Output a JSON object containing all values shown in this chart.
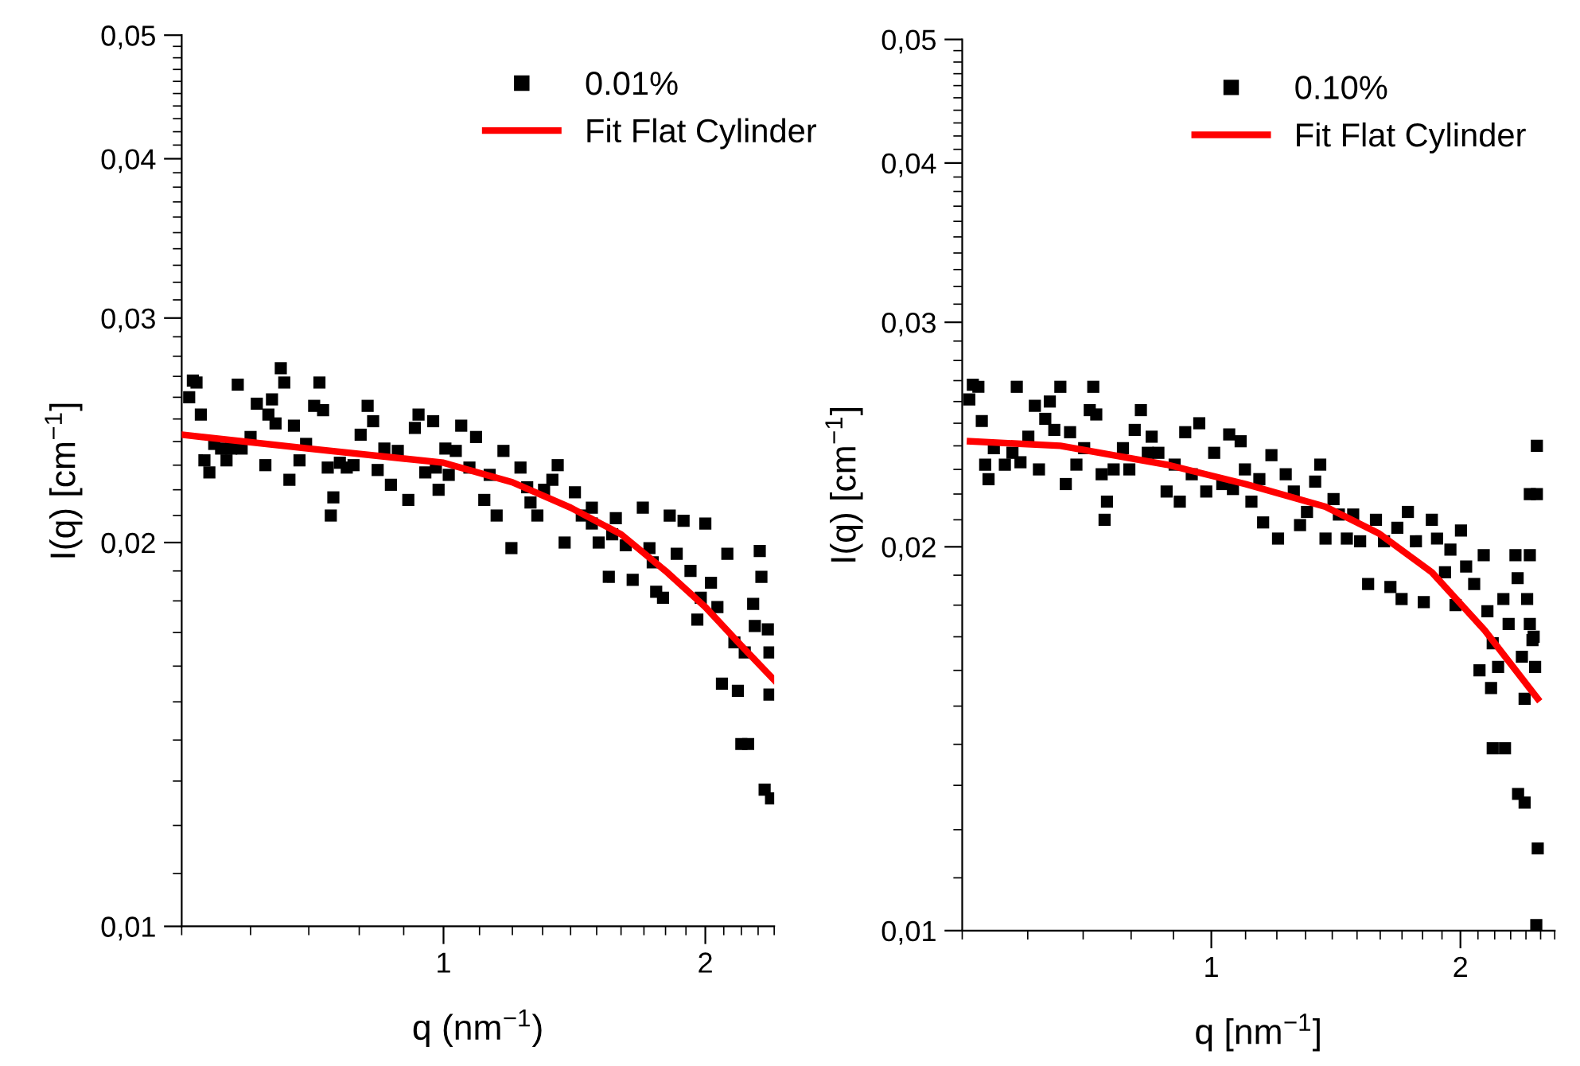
{
  "chart_data": [
    {
      "type": "scatter",
      "xlabel": "q (nm$^{−1}$)",
      "ylabel": "I(q) [cm$^{−1}$]",
      "log": "xy",
      "legend": "top right",
      "xlim": [
        0.5,
        2.4
      ],
      "ylim": [
        0.01,
        0.05
      ],
      "xticks": [
        1,
        2
      ],
      "yticks": [
        {
          "value": 0.01,
          "label": "0,01"
        },
        {
          "value": 0.02,
          "label": "0,02"
        },
        {
          "value": 0.03,
          "label": "0,03"
        },
        {
          "value": 0.04,
          "label": "0,04"
        },
        {
          "value": 0.05,
          "label": "0,05"
        }
      ],
      "series": [
        {
          "name": "0.01%",
          "color": "#000000",
          "marker": "square",
          "x": [
            0.51,
            0.515,
            0.52,
            0.526,
            0.531,
            0.538,
            0.545,
            0.555,
            0.563,
            0.57,
            0.58,
            0.586,
            0.6,
            0.61,
            0.624,
            0.629,
            0.635,
            0.641,
            0.65,
            0.656,
            0.665,
            0.673,
            0.683,
            0.695,
            0.71,
            0.72,
            0.727,
            0.736,
            0.742,
            0.747,
            0.76,
            0.774,
            0.788,
            0.803,
            0.818,
            0.83,
            0.84,
            0.855,
            0.87,
            0.886,
            0.911,
            0.927,
            0.936,
            0.953,
            0.973,
            0.987,
            1.005,
            1.033,
            1.048,
            1.071,
            1.09,
            1.114,
            1.151,
            1.172,
            1.197,
            1.226,
            1.248,
            1.282,
            1.305,
            1.334,
            1.353,
            1.378,
            1.416,
            1.442,
            1.481,
            1.508,
            1.549,
            1.578,
            1.62,
            1.65,
            1.695,
            1.725,
            1.756,
            1.788,
            1.82,
            1.854,
            1.888,
            1.923,
            1.958,
            2.0,
            2.03,
            2.09,
            2.12,
            2.16,
            2.18,
            2.2,
            2.24,
            2.27,
            2.31,
            2.32,
            2.34,
            2.36,
            2.37,
            2.38,
            2.37,
            1.976,
            2.065,
            1.74,
            1.563,
            1.481,
            1.259,
            1.13,
            1.014,
            0.98,
            2.28,
            2.22
          ],
          "values": [
            0.026,
            0.0268,
            0.0267,
            0.0252,
            0.0232,
            0.0227,
            0.0239,
            0.0237,
            0.0232,
            0.0237,
            0.0266,
            0.0237,
            0.0242,
            0.0257,
            0.023,
            0.0252,
            0.0259,
            0.0248,
            0.0274,
            0.0267,
            0.0224,
            0.0247,
            0.0232,
            0.0239,
            0.0256,
            0.0267,
            0.0254,
            0.0229,
            0.021,
            0.0217,
            0.0231,
            0.0229,
            0.023,
            0.0243,
            0.0256,
            0.0249,
            0.0228,
            0.0237,
            0.0222,
            0.0236,
            0.0216,
            0.0246,
            0.0252,
            0.0227,
            0.0249,
            0.022,
            0.0237,
            0.0236,
            0.0247,
            0.0229,
            0.0242,
            0.0216,
            0.021,
            0.0236,
            0.0198,
            0.0229,
            0.0221,
            0.021,
            0.022,
            0.0224,
            0.023,
            0.02,
            0.0219,
            0.021,
            0.0213,
            0.02,
            0.0188,
            0.0209,
            0.0199,
            0.0187,
            0.0213,
            0.0198,
            0.0183,
            0.0181,
            0.021,
            0.0196,
            0.0208,
            0.019,
            0.0174,
            0.0207,
            0.0186,
            0.0155,
            0.0196,
            0.0167,
            0.0153,
            0.0139,
            0.0139,
            0.0179,
            0.0197,
            0.0188,
            0.0128,
            0.0171,
            0.0152,
            0.0126,
            0.0164,
            0.0181,
            0.0178,
            0.0193,
            0.0203,
            0.0207,
            0.0215,
            0.0226,
            0.0226,
            0.0229,
            0.0172,
            0.0164
          ]
        },
        {
          "name": "Fit Flat Cylinder",
          "type": "line",
          "color": "#ff0000",
          "x": [
            0.5,
            0.7,
            1.0,
            1.2,
            1.4,
            1.6,
            1.8,
            2.0,
            2.2,
            2.4
          ],
          "values": [
            0.0243,
            0.0237,
            0.0231,
            0.0223,
            0.0213,
            0.0203,
            0.019,
            0.0178,
            0.0166,
            0.0156
          ]
        }
      ]
    },
    {
      "type": "scatter",
      "xlabel": "q [nm$^{−1}$]",
      "ylabel": "I(q) [cm$^{−1}$]",
      "log": "xy",
      "legend": "top right",
      "xlim": [
        0.5,
        2.6
      ],
      "ylim": [
        0.01,
        0.05
      ],
      "xticks": [
        1,
        2
      ],
      "yticks": [
        {
          "value": 0.01,
          "label": "0,01"
        },
        {
          "value": 0.02,
          "label": "0,02"
        },
        {
          "value": 0.03,
          "label": "0,03"
        },
        {
          "value": 0.04,
          "label": "0,04"
        },
        {
          "value": 0.05,
          "label": "0,05"
        }
      ],
      "series": [
        {
          "name": "0.10%",
          "color": "#000000",
          "marker": "square",
          "x": [
            0.51,
            0.515,
            0.523,
            0.528,
            0.533,
            0.538,
            0.546,
            0.563,
            0.575,
            0.582,
            0.588,
            0.601,
            0.612,
            0.619,
            0.63,
            0.638,
            0.646,
            0.657,
            0.667,
            0.675,
            0.687,
            0.702,
            0.713,
            0.72,
            0.726,
            0.737,
            0.748,
            0.743,
            0.762,
            0.782,
            0.796,
            0.808,
            0.822,
            0.838,
            0.847,
            0.863,
            0.883,
            0.903,
            0.916,
            0.93,
            0.947,
            0.967,
            0.986,
            1.008,
            1.031,
            1.051,
            1.062,
            1.085,
            1.098,
            1.118,
            1.143,
            1.155,
            1.182,
            1.204,
            1.23,
            1.258,
            1.28,
            1.305,
            1.335,
            1.354,
            1.374,
            1.405,
            1.426,
            1.458,
            1.484,
            1.513,
            1.547,
            1.581,
            1.617,
            1.646,
            1.678,
            1.698,
            1.728,
            1.767,
            1.806,
            1.847,
            1.874,
            1.916,
            1.945,
            1.973,
            2.003,
            2.032,
            2.078,
            2.109,
            2.134,
            2.156,
            2.178,
            2.188,
            2.221,
            2.254,
            2.287,
            2.331,
            2.345,
            2.373,
            2.391,
            2.408,
            2.426,
            2.444,
            2.462,
            2.188,
            2.264,
            2.348,
            2.391,
            2.474,
            2.426,
            2.474,
            2.426,
            2.452,
            2.48,
            2.47
          ],
          "values": [
            0.0261,
            0.0268,
            0.0267,
            0.0251,
            0.0232,
            0.0226,
            0.0239,
            0.0232,
            0.0237,
            0.0267,
            0.0233,
            0.0244,
            0.0258,
            0.023,
            0.0252,
            0.026,
            0.0247,
            0.0267,
            0.0224,
            0.0246,
            0.0232,
            0.0239,
            0.0256,
            0.0267,
            0.0254,
            0.0228,
            0.0217,
            0.021,
            0.023,
            0.0239,
            0.023,
            0.0247,
            0.0256,
            0.0237,
            0.0244,
            0.0237,
            0.0221,
            0.0232,
            0.0217,
            0.0246,
            0.0228,
            0.025,
            0.0221,
            0.0237,
            0.0224,
            0.0245,
            0.0222,
            0.0242,
            0.023,
            0.0217,
            0.0226,
            0.0209,
            0.0236,
            0.0203,
            0.0228,
            0.0221,
            0.0208,
            0.0213,
            0.0225,
            0.0232,
            0.0203,
            0.0218,
            0.0212,
            0.0203,
            0.0212,
            0.0202,
            0.0187,
            0.021,
            0.0202,
            0.0186,
            0.0207,
            0.0182,
            0.0213,
            0.0202,
            0.0181,
            0.021,
            0.0203,
            0.0191,
            0.0199,
            0.018,
            0.0206,
            0.0193,
            0.0187,
            0.016,
            0.0197,
            0.0178,
            0.0155,
            0.0168,
            0.0161,
            0.0182,
            0.0174,
            0.0197,
            0.0189,
            0.0164,
            0.0152,
            0.0182,
            0.0197,
            0.0169,
            0.0161,
            0.0139,
            0.0139,
            0.0128,
            0.0126,
            0.024,
            0.022,
            0.022,
            0.0174,
            0.017,
            0.0116,
            0.0101
          ]
        },
        {
          "name": "Fit Flat Cylinder",
          "type": "line",
          "color": "#ff0000",
          "x": [
            0.511,
            0.657,
            0.883,
            1.1,
            1.374,
            1.592,
            1.847,
            2.14,
            2.48
          ],
          "values": [
            0.0242,
            0.024,
            0.0232,
            0.0224,
            0.0215,
            0.0205,
            0.0191,
            0.0172,
            0.0152
          ]
        }
      ]
    }
  ]
}
